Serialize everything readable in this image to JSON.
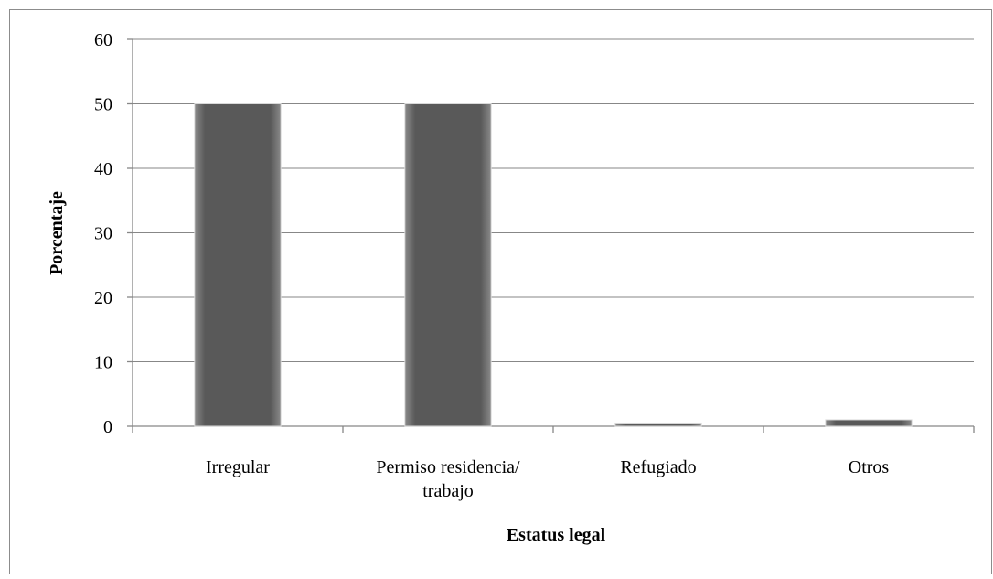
{
  "chart_data": {
    "type": "bar",
    "categories": [
      "Irregular",
      "Permiso residencia/ trabajo",
      "Refugiado",
      "Otros"
    ],
    "values": [
      50,
      50,
      0.5,
      1
    ],
    "color": "#595959",
    "xlabel": "Estatus legal",
    "ylabel": "Porcentaje",
    "ylim": [
      0,
      60
    ],
    "yticks": [
      0,
      10,
      20,
      30,
      40,
      50,
      60
    ],
    "grid": true
  }
}
